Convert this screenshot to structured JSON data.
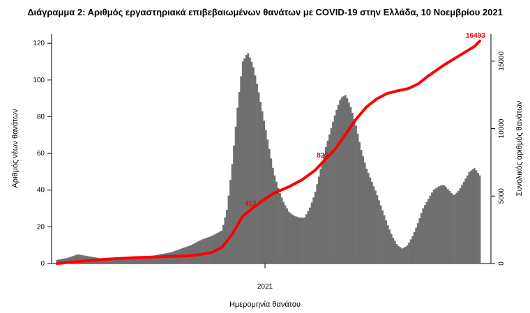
{
  "chart_data": {
    "type": "bar+line",
    "title": "Διάγραμμα 2: Αριθμός εργαστηριακά επιβεβαιωμένων θανάτων με COVID-19 στην Ελλάδα, 10 Νοεμβρίου 2021",
    "xlabel": "Ημερομηνία θανάτου",
    "ylabel_left": "Αριθμός νέων θανάτων",
    "ylabel_right": "Συνολικός αριθμός θανάτων",
    "x_tick_labels": [
      "2021"
    ],
    "y_left_ticks": [
      0,
      20,
      40,
      60,
      80,
      100,
      120
    ],
    "y_right_ticks": [
      0,
      5000,
      10000,
      15000
    ],
    "ylim_left": [
      0,
      125
    ],
    "ylim_right": [
      0,
      17000
    ],
    "series_colors": {
      "daily": "#6f6f6f",
      "cumulative": "#ff0000"
    },
    "daily_deaths_weekly_keypoints": [
      [
        0,
        2
      ],
      [
        4,
        3
      ],
      [
        8,
        5
      ],
      [
        12,
        4
      ],
      [
        16,
        3
      ],
      [
        20,
        2
      ],
      [
        24,
        2
      ],
      [
        28,
        3
      ],
      [
        32,
        3
      ],
      [
        36,
        4
      ],
      [
        40,
        5
      ],
      [
        44,
        6
      ],
      [
        48,
        8
      ],
      [
        52,
        10
      ],
      [
        56,
        13
      ],
      [
        60,
        15
      ],
      [
        64,
        18
      ],
      [
        66,
        30
      ],
      [
        68,
        55
      ],
      [
        70,
        85
      ],
      [
        72,
        110
      ],
      [
        74,
        115
      ],
      [
        76,
        108
      ],
      [
        78,
        95
      ],
      [
        80,
        80
      ],
      [
        82,
        65
      ],
      [
        84,
        50
      ],
      [
        86,
        40
      ],
      [
        88,
        33
      ],
      [
        90,
        28
      ],
      [
        92,
        26
      ],
      [
        94,
        25
      ],
      [
        96,
        25
      ],
      [
        98,
        30
      ],
      [
        100,
        38
      ],
      [
        102,
        50
      ],
      [
        104,
        62
      ],
      [
        106,
        72
      ],
      [
        108,
        82
      ],
      [
        110,
        90
      ],
      [
        112,
        92
      ],
      [
        114,
        85
      ],
      [
        116,
        75
      ],
      [
        118,
        62
      ],
      [
        120,
        52
      ],
      [
        122,
        45
      ],
      [
        124,
        38
      ],
      [
        126,
        30
      ],
      [
        128,
        22
      ],
      [
        130,
        15
      ],
      [
        132,
        10
      ],
      [
        134,
        8
      ],
      [
        136,
        10
      ],
      [
        138,
        15
      ],
      [
        140,
        22
      ],
      [
        142,
        30
      ],
      [
        144,
        35
      ],
      [
        146,
        40
      ],
      [
        148,
        42
      ],
      [
        150,
        43
      ],
      [
        152,
        40
      ],
      [
        154,
        37
      ],
      [
        156,
        40
      ],
      [
        158,
        45
      ],
      [
        160,
        50
      ],
      [
        162,
        52
      ],
      [
        164,
        48
      ]
    ],
    "cumulative_deaths_keypoints": [
      [
        0,
        0
      ],
      [
        10,
        180
      ],
      [
        20,
        330
      ],
      [
        30,
        430
      ],
      [
        40,
        500
      ],
      [
        50,
        560
      ],
      [
        55,
        650
      ],
      [
        60,
        820
      ],
      [
        64,
        1200
      ],
      [
        68,
        2200
      ],
      [
        72,
        3500
      ],
      [
        76,
        4130
      ],
      [
        80,
        4700
      ],
      [
        84,
        5200
      ],
      [
        90,
        5700
      ],
      [
        95,
        6200
      ],
      [
        100,
        6900
      ],
      [
        104,
        7700
      ],
      [
        108,
        8500
      ],
      [
        112,
        9600
      ],
      [
        116,
        10700
      ],
      [
        120,
        11600
      ],
      [
        124,
        12200
      ],
      [
        128,
        12600
      ],
      [
        132,
        12800
      ],
      [
        136,
        12950
      ],
      [
        140,
        13300
      ],
      [
        144,
        13900
      ],
      [
        150,
        14700
      ],
      [
        156,
        15400
      ],
      [
        162,
        16100
      ],
      [
        164,
        16493
      ]
    ],
    "annotations": [
      {
        "text": "16493",
        "x": 164,
        "y": 16493
      },
      {
        "text": "413",
        "x": 76,
        "y": 4130
      },
      {
        "text": "822",
        "x": 104,
        "y": 7700
      }
    ],
    "grid": false,
    "legend": "none"
  }
}
